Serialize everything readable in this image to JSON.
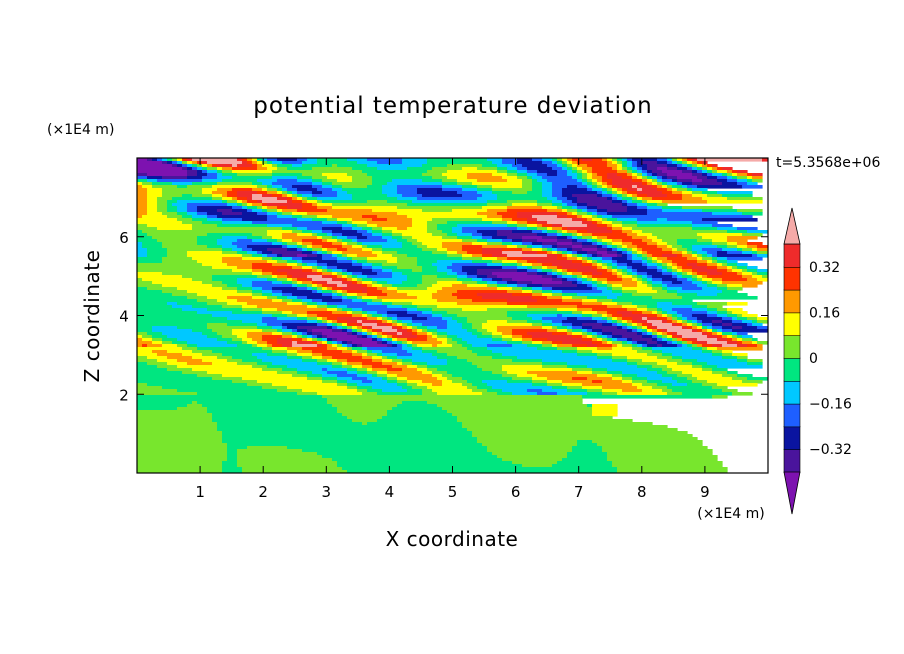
{
  "chart_data": {
    "type": "heatmap",
    "title": "potential temperature deviation",
    "xlabel": "X coordinate",
    "ylabel": "Z coordinate",
    "x_unit": "(×1E4 m)",
    "y_unit": "(×1E4 m)",
    "time_label": "t=5.3568e+06",
    "xlim": [
      0,
      10
    ],
    "ylim": [
      0,
      8
    ],
    "x_ticks": [
      "1",
      "2",
      "3",
      "4",
      "5",
      "6",
      "7",
      "8",
      "9"
    ],
    "y_ticks": [
      "2",
      "4",
      "6"
    ],
    "colorbar": {
      "levels": [
        -0.4,
        -0.32,
        -0.24,
        -0.16,
        -0.08,
        0,
        0.08,
        0.16,
        0.24,
        0.32,
        0.4
      ],
      "tick_labels": [
        "0.32",
        "0.16",
        "0",
        "−0.16",
        "−0.32"
      ],
      "tick_values": [
        0.32,
        0.16,
        0,
        -0.16,
        -0.32
      ],
      "colors": [
        "#7d12b0",
        "#4a149c",
        "#0a14a0",
        "#1e5fff",
        "#00c8ff",
        "#00e680",
        "#78e62d",
        "#ffff00",
        "#ff9900",
        "#ff3300",
        "#ef2b2b",
        "#f5aaa8"
      ],
      "under_color": "#7d12b0",
      "over_color": "#f5aaa8"
    }
  }
}
